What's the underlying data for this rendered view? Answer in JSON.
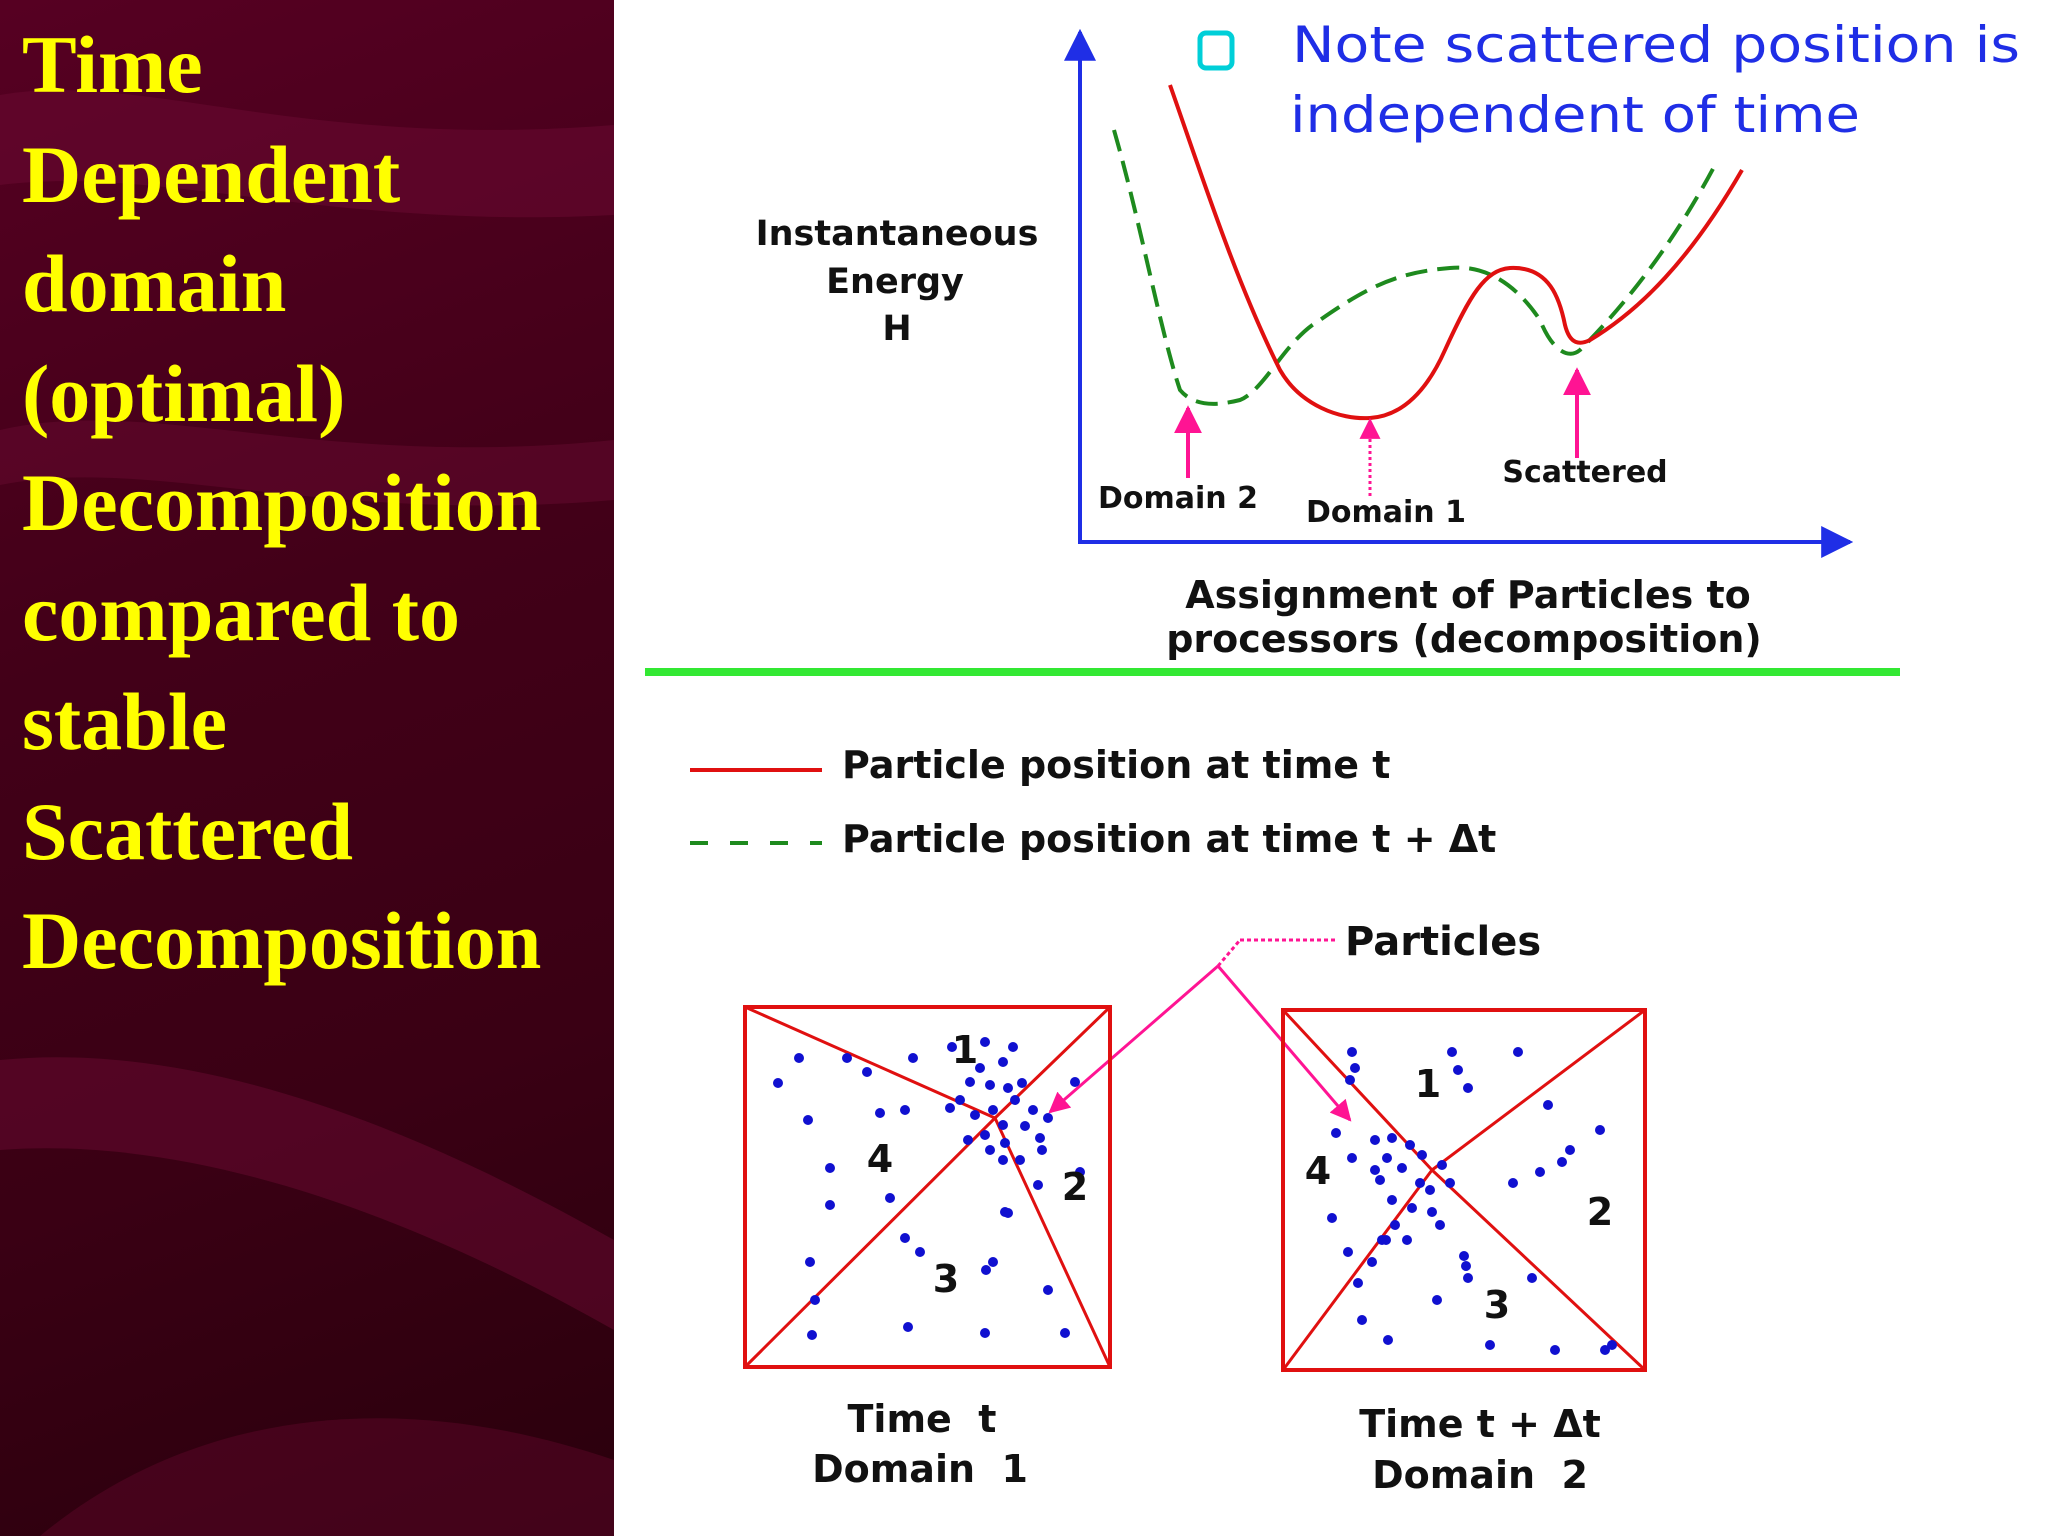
{
  "title_lines": [
    "Time",
    "Dependent",
    "domain",
    "(optimal)",
    "Decomposition",
    "compared to",
    "stable",
    "Scattered",
    "Decomposition"
  ],
  "graph": {
    "y_label_lines": [
      "Instantaneous",
      "Energy",
      "H"
    ],
    "x_label_lines": [
      "Assignment of Particles to",
      "processors (decomposition)"
    ],
    "note_lines": [
      "Note scattered position is",
      "independent of time"
    ],
    "markers": {
      "domain2": "Domain 2",
      "domain1": "Domain 1",
      "scattered": "Scattered"
    }
  },
  "legend": {
    "red_label": "Particle position at time t",
    "green_label": "Particle position at time t + Δt"
  },
  "bottom": {
    "particles_label": "Particles",
    "left_box": {
      "numbers": [
        "1",
        "2",
        "3",
        "4"
      ],
      "caption_lines": [
        "Time  t",
        "Domain  1"
      ]
    },
    "right_box": {
      "numbers": [
        "1",
        "2",
        "3",
        "4"
      ],
      "caption_lines": [
        "Time t + Δt",
        "Domain  2"
      ]
    }
  },
  "colors": {
    "title": "#ffff00",
    "left_bg": "#420018",
    "axis": "#1f2ee6",
    "red_curve": "#e01010",
    "green_curve": "#1e8a1e",
    "marker_arrow": "#ff1493",
    "divider": "#33e833",
    "particle": "#1010d0"
  }
}
